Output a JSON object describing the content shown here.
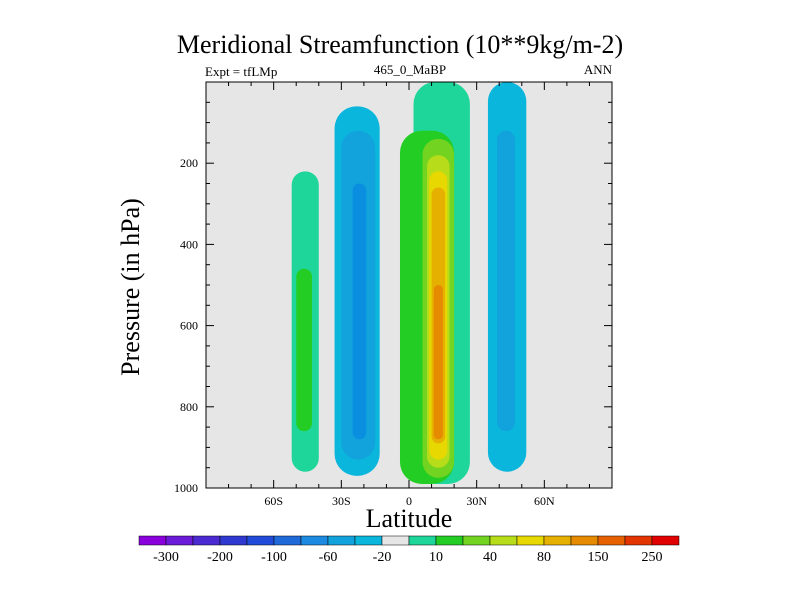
{
  "chart_data": {
    "type": "heatmap",
    "title": "Meridional Streamfunction (10**9kg/m-2)",
    "left_string": "Expt = tfLMp",
    "center_string": "465_0_MaBP",
    "right_string": "ANN",
    "xlabel": "Latitude",
    "ylabel": "Pressure (in hPa)",
    "xlim": [
      -90,
      90
    ],
    "ylim": [
      0,
      1000
    ],
    "x_ticks": [
      {
        "value": -60,
        "label": "60S"
      },
      {
        "value": -30,
        "label": "30S"
      },
      {
        "value": 0,
        "label": "0"
      },
      {
        "value": 30,
        "label": "30N"
      },
      {
        "value": 60,
        "label": "60N"
      }
    ],
    "y_ticks": [
      {
        "value": 200,
        "label": "200"
      },
      {
        "value": 400,
        "label": "400"
      },
      {
        "value": 600,
        "label": "600"
      },
      {
        "value": 800,
        "label": "800"
      },
      {
        "value": 1000,
        "label": "1000"
      }
    ],
    "colorbar": {
      "colors": [
        "#8a00dc",
        "#6c1bd8",
        "#4b2ad2",
        "#2f39cf",
        "#214bd8",
        "#1f6ad8",
        "#1c8ae0",
        "#12a2dc",
        "#0ab6dc",
        "#e6e6e6",
        "#1fd69a",
        "#24cd24",
        "#72d420",
        "#b6dc1a",
        "#e6d800",
        "#e6b000",
        "#e68a00",
        "#e66200",
        "#e33500",
        "#e00000"
      ],
      "labels": [
        "-300",
        "-200",
        "-100",
        "-60",
        "-20",
        "10",
        "40",
        "80",
        "150",
        "250"
      ]
    },
    "level_colors": {
      "neg3": "#0a8fe0",
      "neg2": "#12a2dc",
      "neg1": "#0ab6dc",
      "zero": "#e6e6e6",
      "pos1": "#1fd69a",
      "pos2": "#24cd24",
      "pos3": "#72d420",
      "pos4": "#b6dc1a",
      "pos5": "#e6d800",
      "pos6": "#e6b000",
      "pos7": "#e68a00"
    },
    "features": [
      {
        "name": "southern-outer-cell",
        "level": "pos1",
        "lat_range": [
          -52,
          -40
        ],
        "p_range": [
          220,
          960
        ]
      },
      {
        "name": "southern-outer-cell-core",
        "level": "pos2",
        "lat_range": [
          -50,
          -43
        ],
        "p_range": [
          460,
          860
        ]
      },
      {
        "name": "southern-ferrel-cell",
        "level": "neg1",
        "lat_range": [
          -33,
          -13
        ],
        "p_range": [
          60,
          970
        ]
      },
      {
        "name": "southern-ferrel-cell-mid",
        "level": "neg2",
        "lat_range": [
          -30,
          -15
        ],
        "p_range": [
          120,
          930
        ]
      },
      {
        "name": "southern-ferrel-cell-core",
        "level": "neg3",
        "lat_range": [
          -25,
          -19
        ],
        "p_range": [
          250,
          880
        ]
      },
      {
        "name": "tropical-cell-outer",
        "level": "pos1",
        "lat_range": [
          2,
          27
        ],
        "p_range": [
          0,
          990
        ]
      },
      {
        "name": "tropical-cell-1",
        "level": "pos2",
        "lat_range": [
          -4,
          20
        ],
        "p_range": [
          120,
          990
        ]
      },
      {
        "name": "tropical-cell-2",
        "level": "pos3",
        "lat_range": [
          6,
          20
        ],
        "p_range": [
          140,
          975
        ]
      },
      {
        "name": "tropical-cell-3",
        "level": "pos4",
        "lat_range": [
          8,
          18
        ],
        "p_range": [
          180,
          950
        ]
      },
      {
        "name": "tropical-cell-4",
        "level": "pos5",
        "lat_range": [
          9,
          17
        ],
        "p_range": [
          220,
          930
        ]
      },
      {
        "name": "tropical-cell-5",
        "level": "pos6",
        "lat_range": [
          10,
          16
        ],
        "p_range": [
          260,
          890
        ]
      },
      {
        "name": "tropical-cell-6",
        "level": "pos7",
        "lat_range": [
          11,
          15
        ],
        "p_range": [
          500,
          880
        ]
      },
      {
        "name": "northern-ferrel-cell",
        "level": "neg1",
        "lat_range": [
          35,
          52
        ],
        "p_range": [
          0,
          960
        ]
      },
      {
        "name": "northern-ferrel-cell-core",
        "level": "neg2",
        "lat_range": [
          39,
          47
        ],
        "p_range": [
          120,
          860
        ]
      }
    ]
  }
}
